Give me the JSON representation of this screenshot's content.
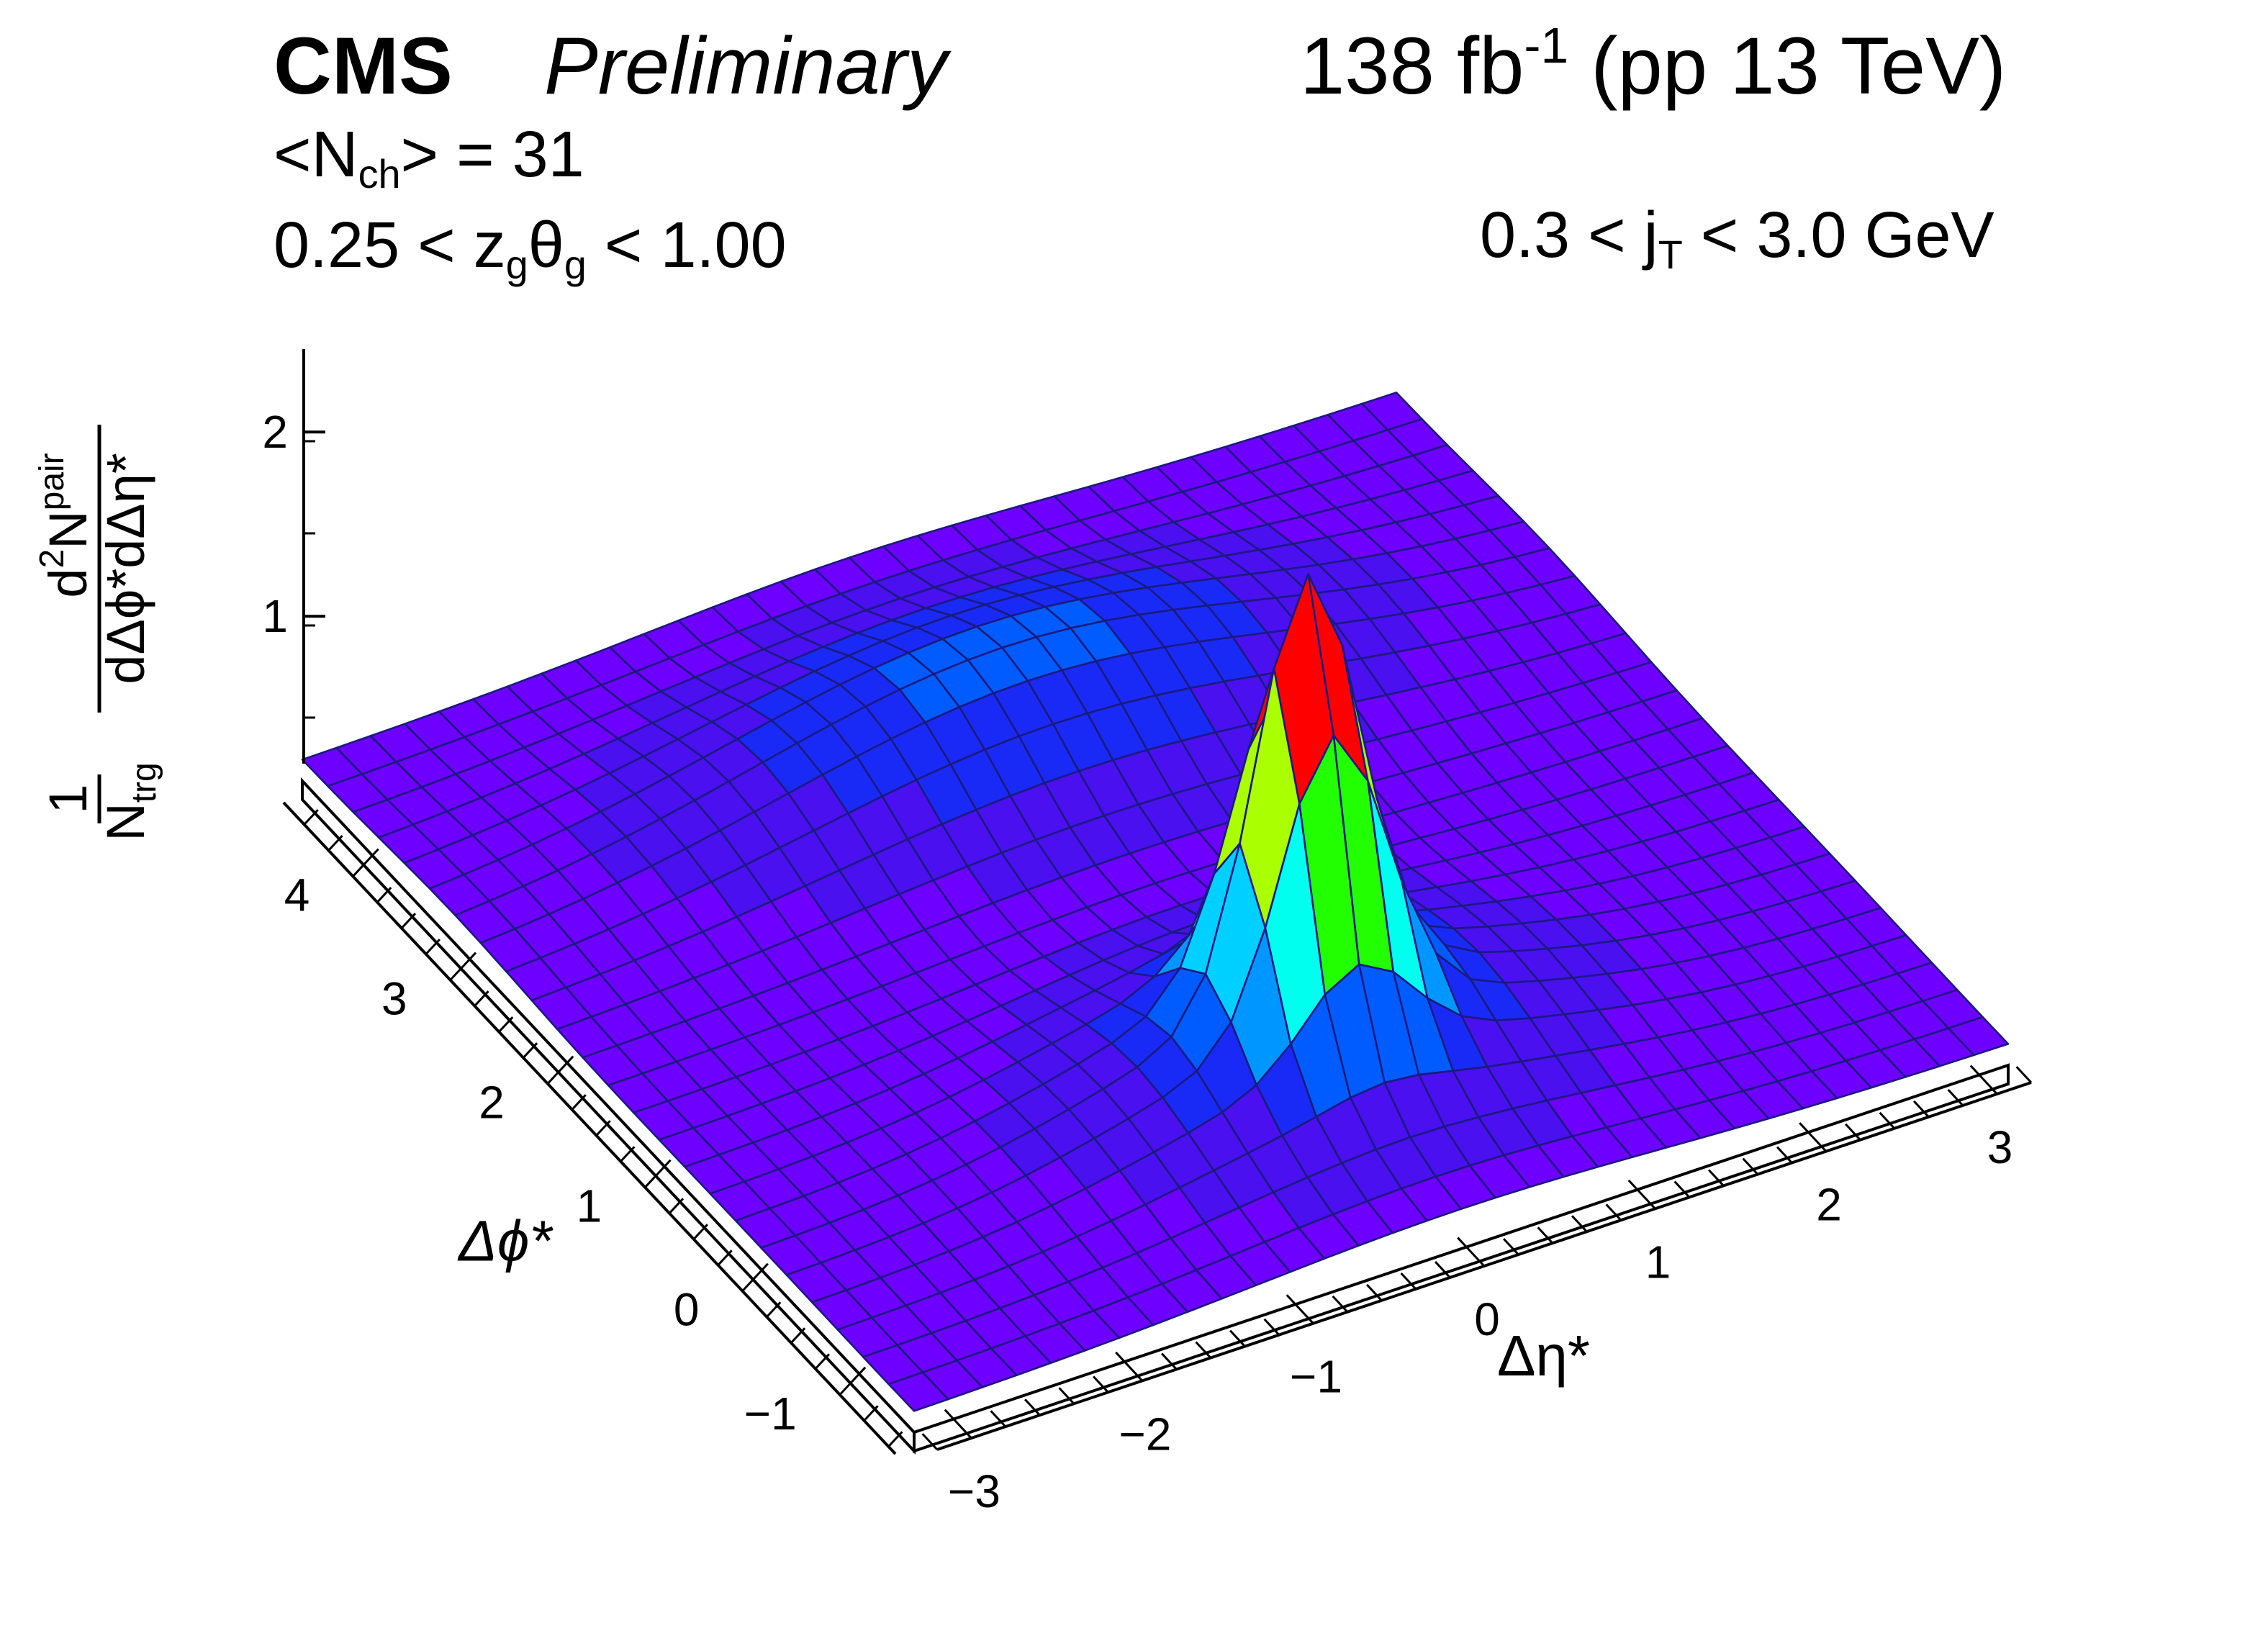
{
  "header": {
    "experiment": "CMS",
    "status": "Preliminary",
    "luminosity_value": "138 fb",
    "luminosity_exponent": "-1",
    "luminosity_condition": " (pp 13 TeV)",
    "multiplicity": {
      "open": "<N",
      "sub": "ch",
      "close": "> = 31"
    },
    "groomed_range": {
      "low": "0.25 < z",
      "sub1": "g",
      "theta": "θ",
      "sub2": "g",
      "high": " < 1.00"
    },
    "jt_range": {
      "low": "0.3 < j",
      "sub": "T",
      "high": " < 3.0 GeV"
    }
  },
  "chart_data": {
    "type": "surface",
    "xlabel": "Δη*",
    "ylabel": "Δϕ*",
    "zlabel": "1/N_trg d²N^pair/dΔϕ*dΔη*",
    "zlabel_parts": {
      "num_one": "1",
      "den_one": "N",
      "den_one_sub": "trg",
      "num_two": "d",
      "num_two_sup": "2",
      "num_two_n": "N",
      "num_two_n_sup": "pair",
      "den_two": "dΔϕ*dΔη*"
    },
    "xlim": [
      -3.2,
      3.2
    ],
    "ylim": [
      -1.571,
      4.712
    ],
    "zlim": [
      0.2,
      2.45
    ],
    "x_ticks": [
      -3,
      -2,
      -1,
      0,
      1,
      2,
      3
    ],
    "y_ticks": [
      -1,
      0,
      1,
      2,
      3,
      4
    ],
    "z_ticks": [
      1,
      2
    ],
    "x_tick_labels": [
      "−3",
      "−2",
      "−1",
      "0",
      "1",
      "2",
      "3"
    ],
    "y_tick_labels": [
      "−1",
      "0",
      "1",
      "2",
      "3",
      "4"
    ],
    "z_tick_labels": [
      "1",
      "2"
    ],
    "grid_nx": 32,
    "grid_ny": 24,
    "baseline": 0.3,
    "nearside_peak": {
      "eta": 0.0,
      "phi": 0.0,
      "height": 2.0,
      "sigma_eta": 0.3,
      "sigma_phi": 0.3
    },
    "nearside_broad": {
      "eta": 0.0,
      "phi": 0.0,
      "height": 0.4,
      "sigma_eta": 1.1,
      "sigma_phi": 0.8
    },
    "awayside_ridge": {
      "eta": 0.0,
      "phi": 3.1416,
      "height": 0.45,
      "sigma_eta": 1.45,
      "sigma_phi": 0.7
    },
    "colors": [
      "#6e00ff",
      "#4a10f0",
      "#1a2af6",
      "#005cff",
      "#0096ff",
      "#00d0ff",
      "#00ffee",
      "#00ff88",
      "#22ff00",
      "#aaff00",
      "#ffee00",
      "#ffaa00",
      "#ff5a00",
      "#ff0000"
    ],
    "mesh_color": "#1a1a80"
  }
}
